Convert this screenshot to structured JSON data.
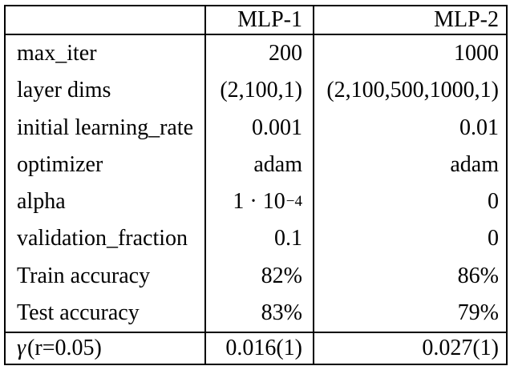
{
  "table": {
    "columns": [
      "",
      "MLP-1",
      "MLP-2"
    ],
    "rows": [
      {
        "label": "max_iter",
        "mlp1": "200",
        "mlp2": "1000"
      },
      {
        "label": "layer dims",
        "mlp1": "(2,100,1)",
        "mlp2": "(2,100,500,1000,1)"
      },
      {
        "label": "initial learning_rate",
        "mlp1": "0.001",
        "mlp2": "0.01"
      },
      {
        "label": "optimizer",
        "mlp1": "adam",
        "mlp2": "adam"
      },
      {
        "label": "alpha",
        "mlp1": {
          "base": "1 · 10",
          "sup": "−4"
        },
        "mlp2": "0"
      },
      {
        "label": "validation_fraction",
        "mlp1": "0.1",
        "mlp2": "0"
      },
      {
        "label": "Train accuracy",
        "mlp1": "82%",
        "mlp2": "86%"
      },
      {
        "label": "Test accuracy",
        "mlp1": "83%",
        "mlp2": "79%"
      }
    ],
    "footer": {
      "symbol": "γ",
      "label_rest": " (r=0.05)",
      "mlp1": "0.016(1)",
      "mlp2": "0.027(1)"
    }
  }
}
